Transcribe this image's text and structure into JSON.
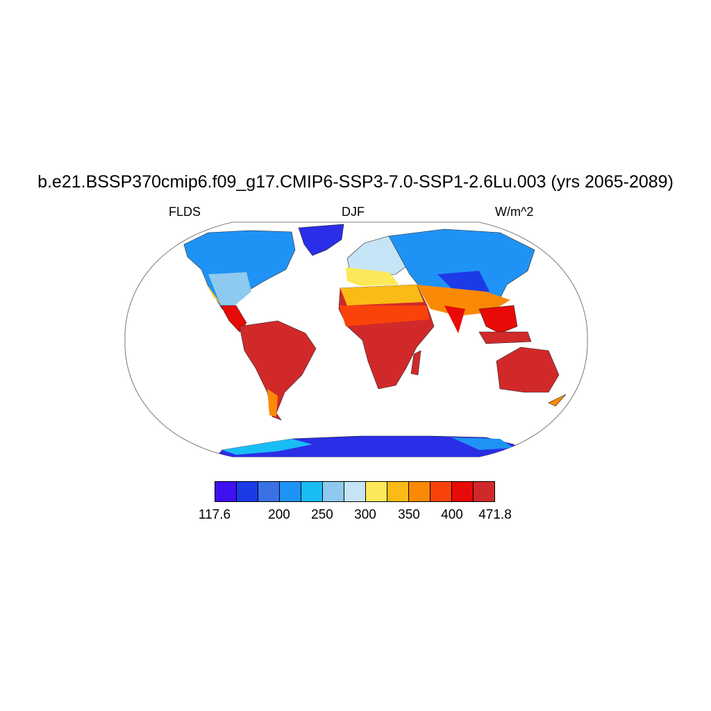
{
  "title": "b.e21.BSSP370cmip6.f09_g17.CMIP6-SSP3-7.0-SSP1-2.6Lu.003 (yrs 2065-2089)",
  "variable": "FLDS",
  "season": "DJF",
  "units": "W/m^2",
  "colorbar": {
    "colors": [
      "#3f10f0",
      "#1c3ae8",
      "#3a72e6",
      "#1f93f5",
      "#19bdf6",
      "#8ecaef",
      "#c5e4f5",
      "#fde85a",
      "#fbbb16",
      "#fa8a05",
      "#f9430b",
      "#e80a07",
      "#d1292a"
    ],
    "ticks": [
      "117.6",
      "200",
      "250",
      "300",
      "350",
      "400",
      "471.8"
    ]
  }
}
